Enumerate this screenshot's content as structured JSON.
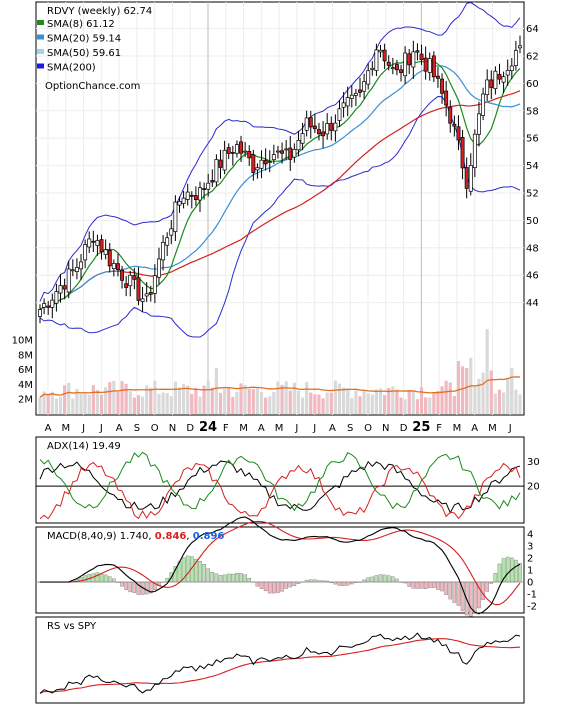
{
  "chart_data": {
    "type": "candlestick",
    "ticker_line": "RDVY (weekly) 62.74",
    "watermark": "OptionChance.com",
    "legend": [
      {
        "text": "SMA(8) 61.12",
        "color": "#1c8a1c"
      },
      {
        "text": "SMA(20) 59.14",
        "color": "#3a8fd6"
      },
      {
        "text": "SMA(50) 59.61",
        "color": "#9fd3f2"
      },
      {
        "text": "SMA(200)",
        "color": "#1a1ae6"
      }
    ],
    "price_axis": {
      "ticks": [
        44,
        46,
        48,
        50,
        52,
        54,
        56,
        58,
        60,
        62,
        64
      ],
      "range": [
        42,
        65.5
      ]
    },
    "volume_axis": {
      "ticks": [
        "2M",
        "4M",
        "6M",
        "8M",
        "10M"
      ],
      "values": [
        2,
        4,
        6,
        8,
        10
      ],
      "range": [
        0,
        13
      ]
    },
    "x_axis": {
      "labels": [
        "A",
        "M",
        "J",
        "J",
        "A",
        "S",
        "O",
        "N",
        "D",
        "24",
        "F",
        "M",
        "A",
        "M",
        "J",
        "J",
        "A",
        "S",
        "O",
        "N",
        "D",
        "25",
        "F",
        "M",
        "A",
        "M",
        "J"
      ],
      "bold_labels": [
        "24",
        "25"
      ]
    },
    "price_key": [
      {
        "label": "Apr 2023",
        "close": 43.5
      },
      {
        "label": "May 2023",
        "close": 45.0
      },
      {
        "label": "Jun 2023",
        "close": 46.5
      },
      {
        "label": "Jul 2023",
        "close": 49.0
      },
      {
        "label": "Aug 2023",
        "close": 47.0
      },
      {
        "label": "Sep 2023",
        "close": 45.5
      },
      {
        "label": "Oct 2023",
        "close": 44.0
      },
      {
        "label": "Nov 2023",
        "close": 48.5
      },
      {
        "label": "Dec 2023",
        "close": 52.0
      },
      {
        "label": "Jan 2024",
        "close": 52.0
      },
      {
        "label": "Feb 2024",
        "close": 54.0
      },
      {
        "label": "Mar 2024",
        "close": 55.5
      },
      {
        "label": "Apr 2024",
        "close": 54.0
      },
      {
        "label": "May 2024",
        "close": 55.0
      },
      {
        "label": "Jun 2024",
        "close": 54.5
      },
      {
        "label": "Jul 2024",
        "close": 57.0
      },
      {
        "label": "Aug 2024",
        "close": 56.5
      },
      {
        "label": "Sep 2024",
        "close": 58.0
      },
      {
        "label": "Oct 2024",
        "close": 59.0
      },
      {
        "label": "Nov 2024",
        "close": 63.0
      },
      {
        "label": "Dec 2024",
        "close": 60.5
      },
      {
        "label": "Jan 2025",
        "close": 62.5
      },
      {
        "label": "Feb 2025",
        "close": 61.0
      },
      {
        "label": "Mar 2025",
        "close": 58.0
      },
      {
        "label": "Apr 2025",
        "close": 53.0
      },
      {
        "label": "May 2025",
        "close": 59.5
      },
      {
        "label": "Jun 2025",
        "close": 61.0
      },
      {
        "label": "Jul 2025",
        "close": 62.74
      }
    ],
    "panels": [
      {
        "title": "ADX(14) 19.49",
        "ticks": [
          20,
          30
        ],
        "range": [
          5,
          40
        ],
        "series_colors": [
          "#000000",
          "#1c8a1c",
          "#d62020"
        ]
      },
      {
        "title_prefix": "MACD(8,40,9) 1.740, ",
        "title_a": "0.846",
        "title_a_color": "#d62020",
        "title_sep": ", ",
        "title_b": "0.896",
        "title_b_color": "#1a5fd6",
        "ticks": [
          4,
          3,
          2,
          1,
          0,
          -1,
          -2
        ],
        "range": [
          -2.5,
          4.5
        ]
      },
      {
        "title": "RS vs SPY"
      }
    ],
    "colors": {
      "up_candle": "#ffffff",
      "down_candle": "#d62020",
      "volume_up": "#d9d9d9",
      "volume_down": "#f2b8c0",
      "volume_avg": "#e07020",
      "bollinger": "#2b2bd0",
      "sma_red": "#d62020",
      "sma_green": "#1c8a1c",
      "sma_blue": "#3a8fd6"
    }
  }
}
